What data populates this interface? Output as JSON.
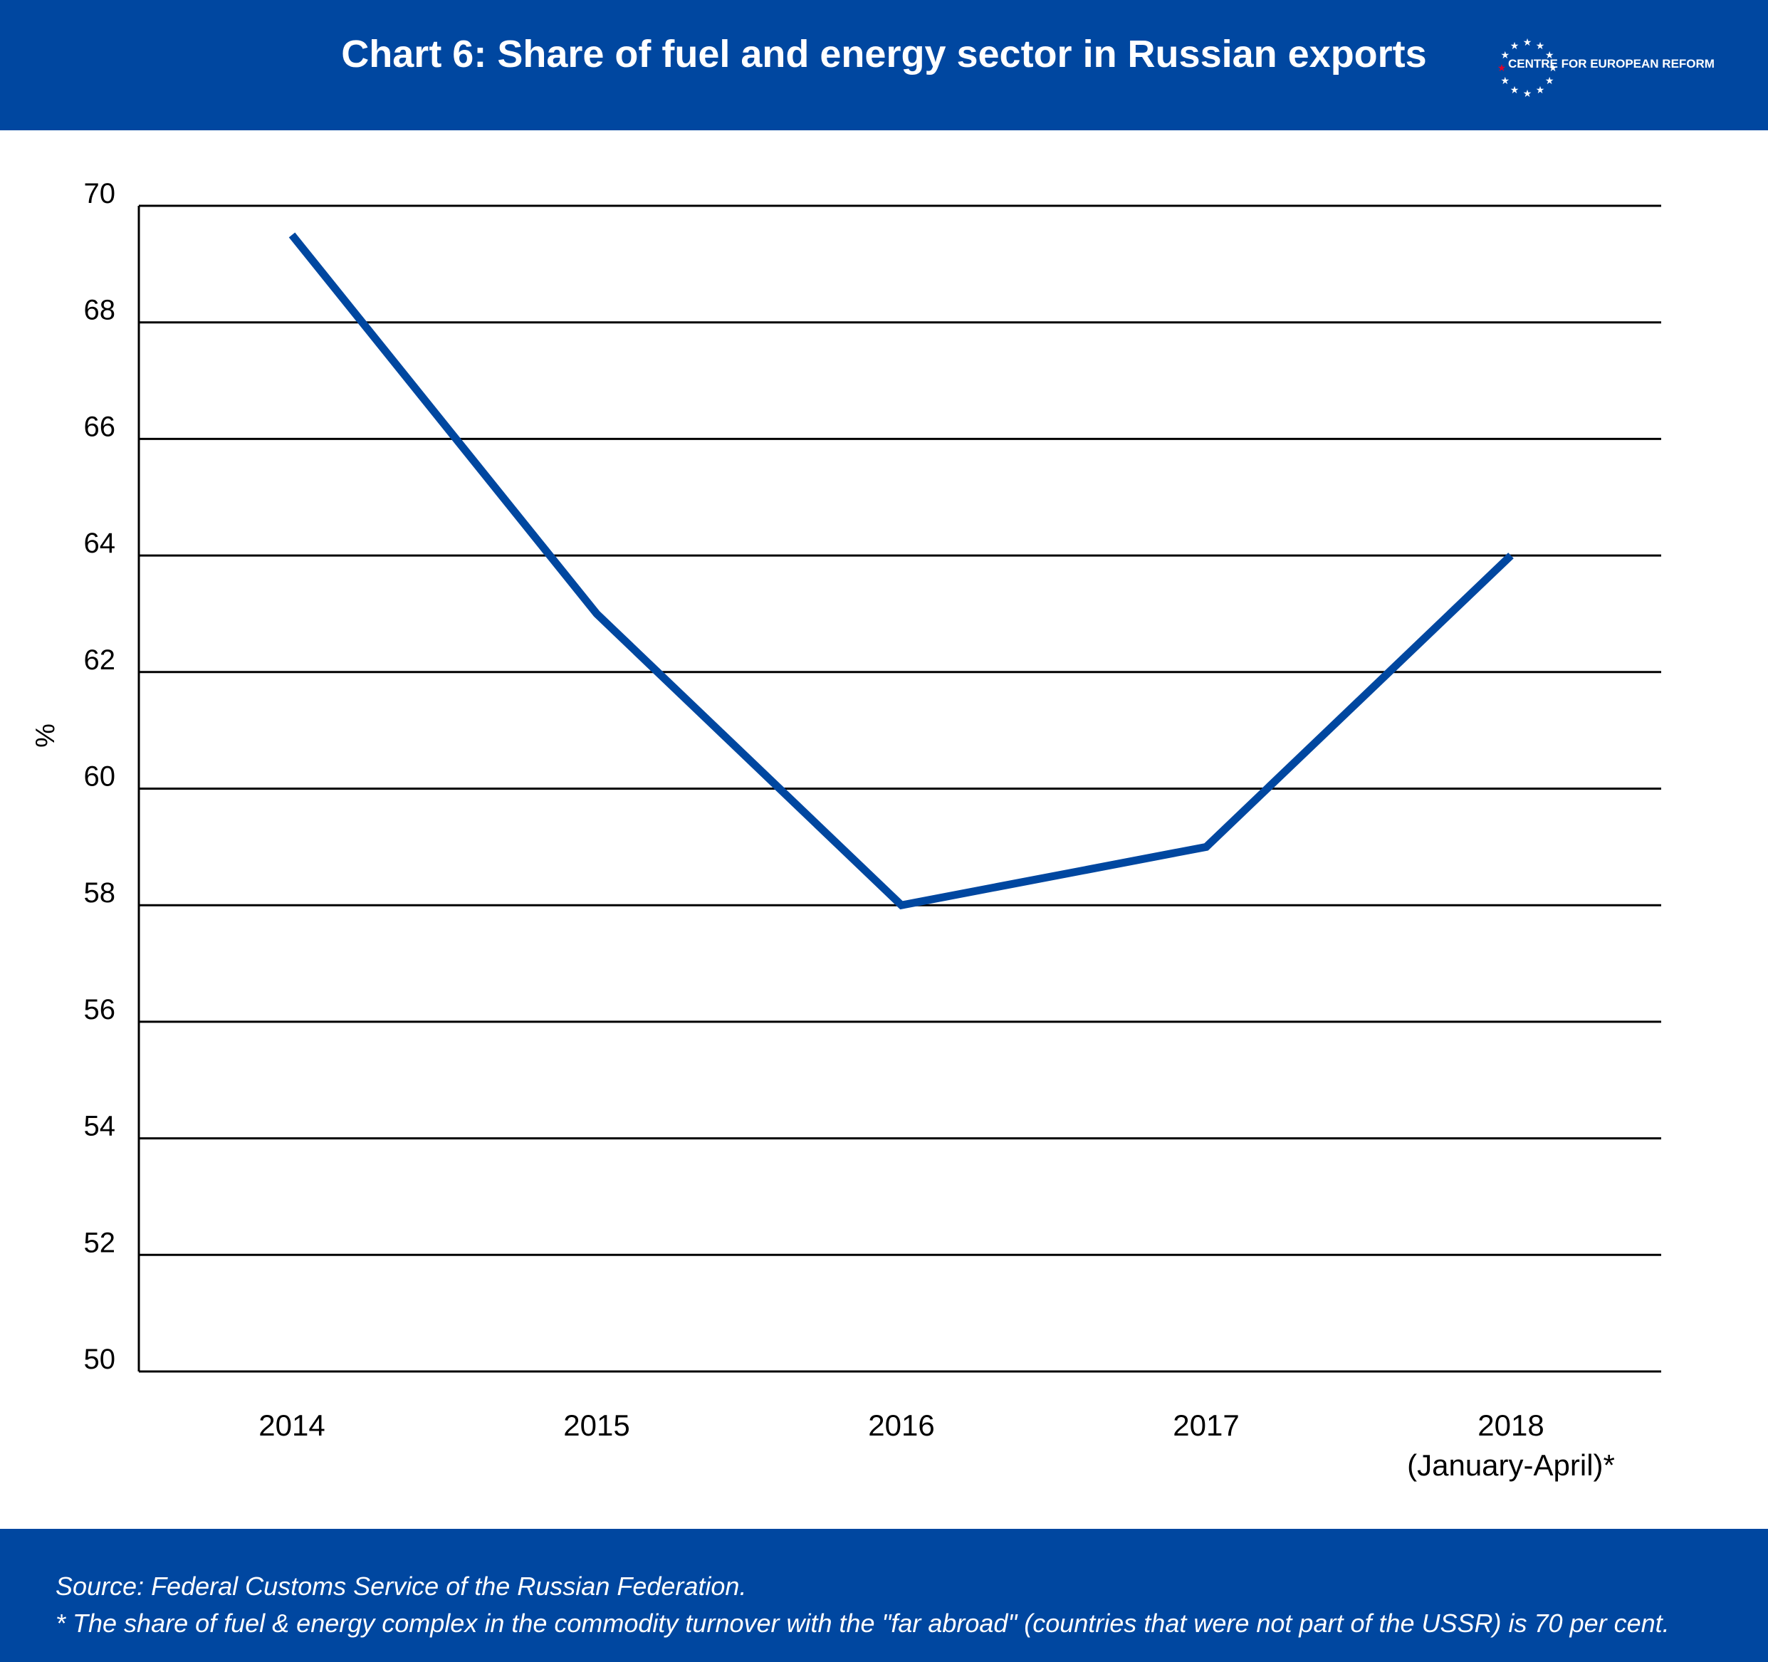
{
  "header": {
    "title": "Chart 6: Share of fuel and energy sector in Russian exports",
    "logo_text": "CENTRE FOR EUROPEAN REFORM"
  },
  "chart_data": {
    "type": "line",
    "title": "Chart 6: Share of fuel and energy sector in Russian exports",
    "ylabel": "%",
    "xlabel": "",
    "ylim": [
      50,
      70
    ],
    "yticks": [
      50,
      52,
      54,
      56,
      58,
      60,
      62,
      64,
      66,
      68,
      70
    ],
    "grid": true,
    "categories": [
      "2014",
      "2015",
      "2016",
      "2017",
      "2018\n(January-April)*"
    ],
    "series": [
      {
        "values": [
          69.5,
          63,
          58,
          59,
          64
        ],
        "color": "#0047a0"
      }
    ],
    "gridline_color": "#000000"
  },
  "footer": {
    "source": "Source: Federal Customs Service of the Russian Federation.",
    "note": "* The share of fuel & energy complex in the commodity turnover with the \"far abroad\" (countries that were not part of the USSR) is 70 per cent."
  },
  "colors": {
    "brand_blue": "#0047a0",
    "logo_star_accent": "#e0002a"
  }
}
